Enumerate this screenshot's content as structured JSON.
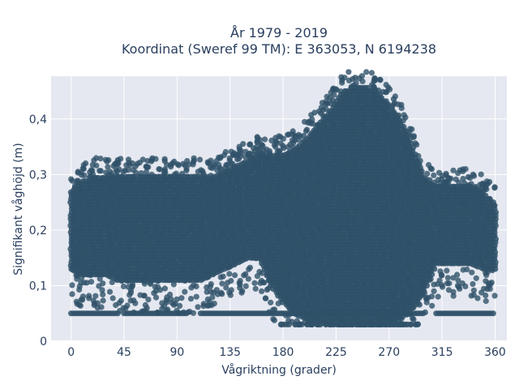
{
  "chart_data": {
    "type": "scatter",
    "title": [
      "År 1979 - 2019",
      "Koordinat (Sweref 99 TM): E 363053, N 6194238"
    ],
    "xlabel": "Vågriktning (grader)",
    "ylabel": "Signifikant våghöjd (m)",
    "xlim": [
      -17,
      370
    ],
    "ylim": [
      0,
      0.477
    ],
    "xticks": [
      0,
      45,
      90,
      135,
      180,
      225,
      270,
      315,
      360
    ],
    "xtick_labels": [
      "0",
      "45",
      "90",
      "135",
      "180",
      "225",
      "270",
      "315",
      "360"
    ],
    "yticks": [
      0,
      0.1,
      0.2,
      0.3,
      0.4
    ],
    "ytick_labels": [
      "0",
      "0,1",
      "0,2",
      "0,3",
      "0,4"
    ],
    "grid": true,
    "marker_color": "#2f5169",
    "plot_bg": "#e5e8f0",
    "envelope": {
      "x": [
        0,
        10,
        20,
        30,
        40,
        50,
        60,
        70,
        80,
        90,
        100,
        110,
        120,
        130,
        140,
        150,
        160,
        170,
        180,
        190,
        200,
        210,
        220,
        230,
        240,
        250,
        260,
        270,
        280,
        290,
        300,
        310,
        320,
        330,
        340,
        350,
        360
      ],
      "upper": [
        0.27,
        0.29,
        0.3,
        0.3,
        0.3,
        0.3,
        0.3,
        0.3,
        0.3,
        0.3,
        0.3,
        0.3,
        0.3,
        0.31,
        0.32,
        0.33,
        0.34,
        0.34,
        0.34,
        0.35,
        0.37,
        0.39,
        0.42,
        0.45,
        0.46,
        0.46,
        0.45,
        0.43,
        0.4,
        0.35,
        0.3,
        0.28,
        0.28,
        0.28,
        0.28,
        0.27,
        0.25
      ],
      "lower": [
        0.13,
        0.12,
        0.12,
        0.12,
        0.11,
        0.11,
        0.11,
        0.11,
        0.11,
        0.11,
        0.11,
        0.11,
        0.12,
        0.13,
        0.14,
        0.15,
        0.15,
        0.1,
        0.07,
        0.05,
        0.04,
        0.035,
        0.03,
        0.03,
        0.03,
        0.03,
        0.03,
        0.03,
        0.04,
        0.06,
        0.09,
        0.14,
        0.14,
        0.14,
        0.14,
        0.13,
        0.13
      ]
    },
    "band_y": 0.05,
    "band_x_ranges": [
      [
        0,
        40
      ],
      [
        45,
        100
      ],
      [
        110,
        180
      ],
      [
        180,
        300
      ],
      [
        310,
        360
      ]
    ]
  }
}
